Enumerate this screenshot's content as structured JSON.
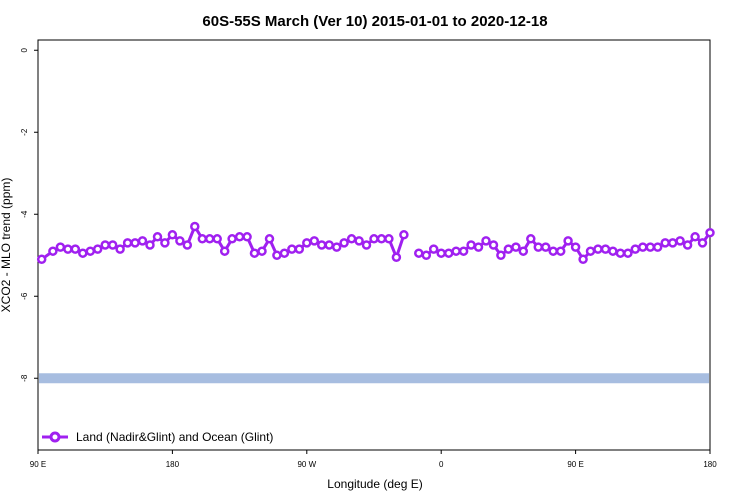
{
  "chart_data": {
    "type": "line",
    "title": "60S-55S March (Ver 10)   2015-01-01 to 2020-12-18",
    "xlabel": "Longitude (deg E)",
    "ylabel": "XCO2 - MLO trend (ppm)",
    "x_ticks": [
      {
        "value": 90,
        "label": "90 E"
      },
      {
        "value": 180,
        "label": "180"
      },
      {
        "value": 270,
        "label": "90 W"
      },
      {
        "value": 360,
        "label": "0"
      },
      {
        "value": 450,
        "label": "90 E"
      },
      {
        "value": 540,
        "label": "180"
      }
    ],
    "y_ticks": [
      {
        "value": 0,
        "label": "0"
      },
      {
        "value": -2,
        "label": "-2"
      },
      {
        "value": -4,
        "label": "-4"
      },
      {
        "value": -6,
        "label": "-6"
      },
      {
        "value": -8,
        "label": "-8"
      }
    ],
    "xlim": [
      90,
      540
    ],
    "ylim": [
      -9.75,
      0.25
    ],
    "grid": false,
    "legend_position": "bottom-left",
    "series": [
      {
        "name": "Land (Nadir&Glint) and Ocean (Glint)",
        "color": "#a020f0",
        "points": [
          [
            92.5,
            -5.1
          ],
          [
            100,
            -4.9
          ],
          [
            105,
            -4.8
          ],
          [
            110,
            -4.85
          ],
          [
            115,
            -4.85
          ],
          [
            120,
            -4.95
          ],
          [
            125,
            -4.9
          ],
          [
            130,
            -4.85
          ],
          [
            135,
            -4.75
          ],
          [
            140,
            -4.75
          ],
          [
            145,
            -4.85
          ],
          [
            150,
            -4.7
          ],
          [
            155,
            -4.7
          ],
          [
            160,
            -4.65
          ],
          [
            165,
            -4.75
          ],
          [
            170,
            -4.55
          ],
          [
            175,
            -4.7
          ],
          [
            180,
            -4.5
          ],
          [
            185,
            -4.65
          ],
          [
            190,
            -4.75
          ],
          [
            195,
            -4.3
          ],
          [
            200,
            -4.6
          ],
          [
            205,
            -4.6
          ],
          [
            210,
            -4.6
          ],
          [
            215,
            -4.9
          ],
          [
            220,
            -4.6
          ],
          [
            225,
            -4.55
          ],
          [
            230,
            -4.55
          ],
          [
            235,
            -4.95
          ],
          [
            240,
            -4.9
          ],
          [
            245,
            -4.6
          ],
          [
            250,
            -5.0
          ],
          [
            255,
            -4.95
          ],
          [
            260,
            -4.85
          ],
          [
            265,
            -4.85
          ],
          [
            270,
            -4.7
          ],
          [
            275,
            -4.65
          ],
          [
            280,
            -4.75
          ],
          [
            285,
            -4.75
          ],
          [
            290,
            -4.8
          ],
          [
            295,
            -4.7
          ],
          [
            300,
            -4.6
          ],
          [
            305,
            -4.65
          ],
          [
            310,
            -4.75
          ],
          [
            315,
            -4.6
          ],
          [
            320,
            -4.6
          ],
          [
            325,
            -4.6
          ],
          [
            330,
            -5.05
          ],
          [
            335,
            -4.5
          ],
          null,
          [
            345,
            -4.95
          ],
          [
            350,
            -5.0
          ],
          [
            355,
            -4.85
          ],
          [
            360,
            -4.95
          ],
          [
            365,
            -4.95
          ],
          [
            370,
            -4.9
          ],
          [
            375,
            -4.9
          ],
          [
            380,
            -4.75
          ],
          [
            385,
            -4.8
          ],
          [
            390,
            -4.65
          ],
          [
            395,
            -4.75
          ],
          [
            400,
            -5.0
          ],
          [
            405,
            -4.85
          ],
          [
            410,
            -4.8
          ],
          [
            415,
            -4.9
          ],
          [
            420,
            -4.6
          ],
          [
            425,
            -4.8
          ],
          [
            430,
            -4.8
          ],
          [
            435,
            -4.9
          ],
          [
            440,
            -4.9
          ],
          [
            445,
            -4.65
          ],
          [
            450,
            -4.8
          ],
          [
            455,
            -5.1
          ],
          [
            460,
            -4.9
          ],
          [
            465,
            -4.85
          ],
          [
            470,
            -4.85
          ],
          [
            475,
            -4.9
          ],
          [
            480,
            -4.95
          ],
          [
            485,
            -4.95
          ],
          [
            490,
            -4.85
          ],
          [
            495,
            -4.8
          ],
          [
            500,
            -4.8
          ],
          [
            505,
            -4.8
          ],
          [
            510,
            -4.7
          ],
          [
            515,
            -4.7
          ],
          [
            520,
            -4.65
          ],
          [
            525,
            -4.75
          ],
          [
            530,
            -4.55
          ],
          [
            535,
            -4.7
          ],
          [
            540,
            -4.45
          ]
        ]
      }
    ],
    "reference_band": {
      "value": -8.0,
      "color": "#a7bde0"
    }
  }
}
